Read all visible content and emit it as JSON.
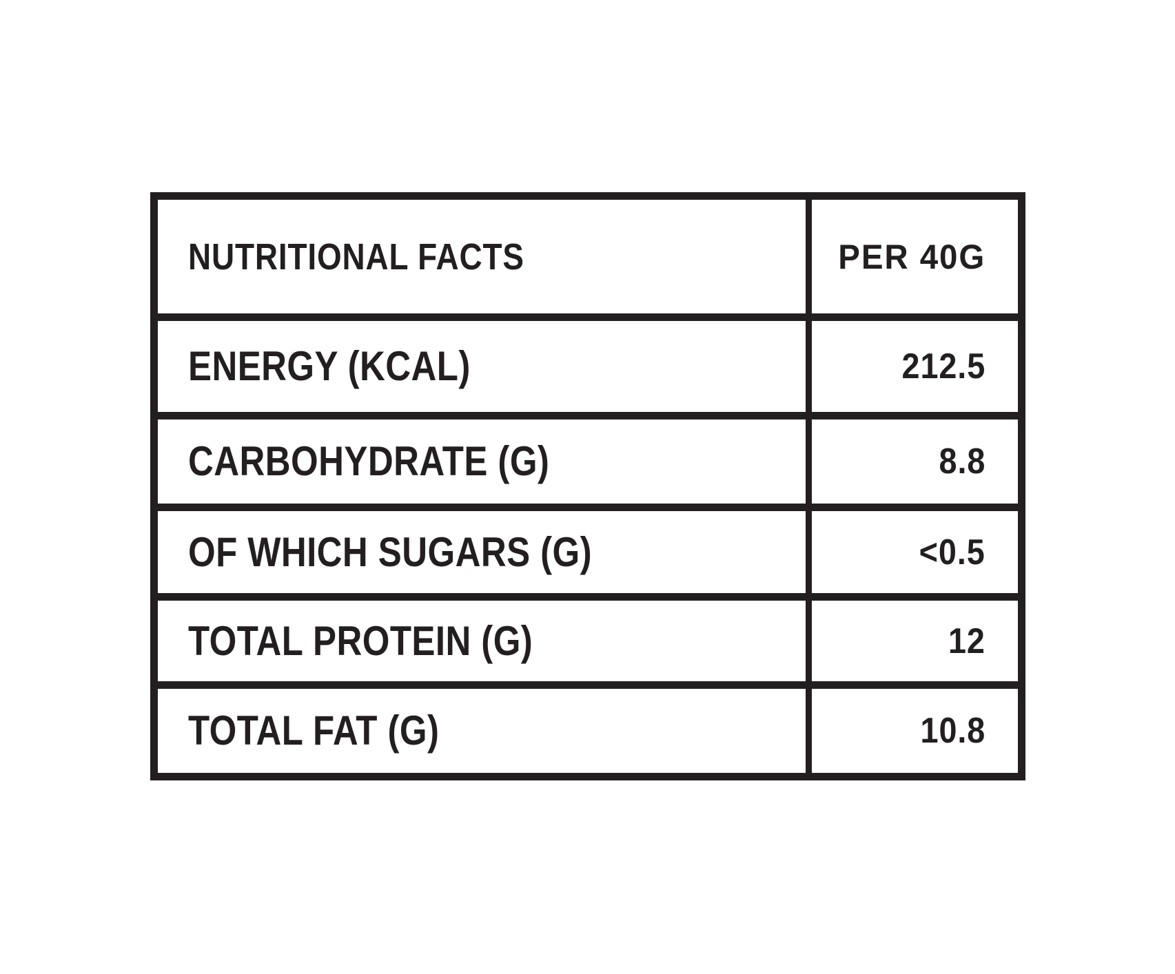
{
  "table": {
    "title": "NUTRITIONAL FACTS",
    "header": {
      "facts_label": "NUTRITIONAL FACTS",
      "serving_label": "PER 40G"
    },
    "rows": [
      {
        "label": "ENERGY (KCAL)",
        "value": "212.5"
      },
      {
        "label": "CARBOHYDRATE (G)",
        "value": "8.8"
      },
      {
        "label": "OF WHICH SUGARS (G)",
        "value": "<0.5"
      },
      {
        "label": "TOTAL PROTEIN (G)",
        "value": "12"
      },
      {
        "label": "TOTAL FAT (G)",
        "value": "10.8"
      }
    ],
    "colors": {
      "ink": "#231f20",
      "background": "#ffffff"
    }
  }
}
